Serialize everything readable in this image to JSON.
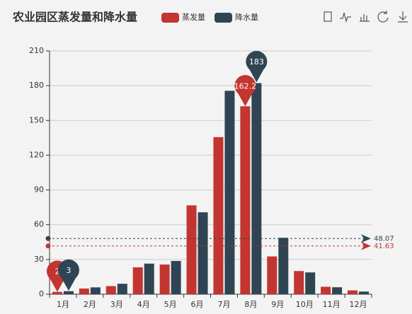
{
  "chart_data": {
    "type": "bar",
    "title": "农业园区蒸发量和降水量",
    "categories": [
      "1月",
      "2月",
      "3月",
      "4月",
      "5月",
      "6月",
      "7月",
      "8月",
      "9月",
      "10月",
      "11月",
      "12月"
    ],
    "series": [
      {
        "name": "蒸发量",
        "color": "#c23531",
        "values": [
          2.0,
          4.9,
          7.0,
          23.2,
          25.6,
          76.7,
          135.6,
          162.2,
          32.6,
          20.0,
          6.4,
          3.3
        ],
        "mark_points": [
          162.2,
          2
        ],
        "mark_line": 41.63
      },
      {
        "name": "降水量",
        "color": "#2f4554",
        "values": [
          2.6,
          5.9,
          9.0,
          26.4,
          28.7,
          70.7,
          175.6,
          182.2,
          48.7,
          18.8,
          6.0,
          2.3
        ],
        "mark_points": [
          183,
          3
        ],
        "mark_line": 48.07
      }
    ],
    "ylim": [
      0,
      210
    ],
    "yticks": [
      0,
      30,
      60,
      90,
      120,
      150,
      180,
      210
    ],
    "grid": true
  }
}
